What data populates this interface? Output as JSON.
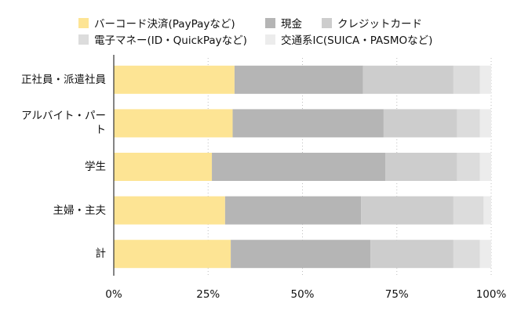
{
  "chart_data": {
    "type": "bar",
    "orientation": "horizontal",
    "stacked": true,
    "normalized": true,
    "categories": [
      "正社員・派遣社員",
      "アルバイト・パート",
      "学生",
      "主婦・主夫",
      "計"
    ],
    "category_lines": [
      [
        "正社員・派遣社員"
      ],
      [
        "アルバイト・パー",
        "ト"
      ],
      [
        "学生"
      ],
      [
        "主婦・主夫"
      ],
      [
        "計"
      ]
    ],
    "series": [
      {
        "name": "バーコード決済(PayPayなど)",
        "color": "#fde494",
        "values": [
          32,
          31.5,
          26,
          29.5,
          31
        ]
      },
      {
        "name": "現金",
        "color": "#b5b5b5",
        "values": [
          34,
          40,
          46,
          36,
          37
        ]
      },
      {
        "name": "クレジットカード",
        "color": "#cdcdcd",
        "values": [
          24,
          19.5,
          19,
          24.5,
          22
        ]
      },
      {
        "name": "電子マネー(ID・QuickPayなど)",
        "color": "#dcdcdc",
        "values": [
          7,
          6,
          6,
          8,
          7
        ]
      },
      {
        "name": "交通系IC(SUICA・PASMOなど)",
        "color": "#ececec",
        "values": [
          3,
          3,
          3,
          2,
          3
        ]
      }
    ],
    "xlim": [
      0,
      100
    ],
    "xticks": [
      0,
      25,
      50,
      75,
      100
    ],
    "xtick_labels": [
      "0%",
      "25%",
      "50%",
      "75%",
      "100%"
    ],
    "grid": true,
    "legend": "top"
  }
}
